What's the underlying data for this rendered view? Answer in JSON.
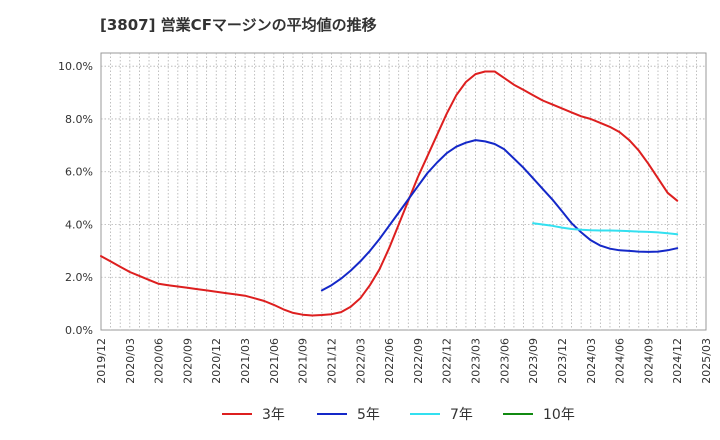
{
  "chart_data": {
    "type": "line",
    "title": "[3807]  営業CFマージンの平均値の推移",
    "xlabel": "",
    "ylabel": "",
    "ylim": [
      0,
      10.5
    ],
    "yticks": [
      "0.0%",
      "2.0%",
      "4.0%",
      "6.0%",
      "8.0%",
      "10.0%"
    ],
    "ytick_values": [
      0,
      2,
      4,
      6,
      8,
      10
    ],
    "xlim": [
      "2019/12",
      "2025/03"
    ],
    "xticks": [
      "2019/12",
      "2020/03",
      "2020/06",
      "2020/09",
      "2020/12",
      "2021/03",
      "2021/06",
      "2021/09",
      "2021/12",
      "2022/03",
      "2022/06",
      "2022/09",
      "2022/12",
      "2023/03",
      "2023/06",
      "2023/09",
      "2023/12",
      "2024/03",
      "2024/06",
      "2024/09",
      "2024/12",
      "2025/03"
    ],
    "grid": true,
    "legend_position": "bottom",
    "series": [
      {
        "name": "3年",
        "color": "#dd1f1f",
        "points": [
          [
            "2019/12",
            2.8
          ],
          [
            "2020/01",
            2.6
          ],
          [
            "2020/02",
            2.4
          ],
          [
            "2020/03",
            2.2
          ],
          [
            "2020/04",
            2.05
          ],
          [
            "2020/05",
            1.9
          ],
          [
            "2020/06",
            1.75
          ],
          [
            "2020/07",
            1.7
          ],
          [
            "2020/08",
            1.65
          ],
          [
            "2020/09",
            1.6
          ],
          [
            "2020/10",
            1.55
          ],
          [
            "2020/11",
            1.5
          ],
          [
            "2020/12",
            1.45
          ],
          [
            "2021/01",
            1.4
          ],
          [
            "2021/02",
            1.35
          ],
          [
            "2021/03",
            1.3
          ],
          [
            "2021/04",
            1.2
          ],
          [
            "2021/05",
            1.1
          ],
          [
            "2021/06",
            0.95
          ],
          [
            "2021/07",
            0.78
          ],
          [
            "2021/08",
            0.65
          ],
          [
            "2021/09",
            0.58
          ],
          [
            "2021/10",
            0.55
          ],
          [
            "2021/11",
            0.57
          ],
          [
            "2021/12",
            0.6
          ],
          [
            "2022/01",
            0.68
          ],
          [
            "2022/02",
            0.88
          ],
          [
            "2022/03",
            1.2
          ],
          [
            "2022/04",
            1.7
          ],
          [
            "2022/05",
            2.3
          ],
          [
            "2022/06",
            3.1
          ],
          [
            "2022/07",
            4.0
          ],
          [
            "2022/08",
            4.9
          ],
          [
            "2022/09",
            5.8
          ],
          [
            "2022/10",
            6.6
          ],
          [
            "2022/11",
            7.4
          ],
          [
            "2022/12",
            8.2
          ],
          [
            "2023/01",
            8.9
          ],
          [
            "2023/02",
            9.4
          ],
          [
            "2023/03",
            9.7
          ],
          [
            "2023/04",
            9.8
          ],
          [
            "2023/05",
            9.8
          ],
          [
            "2023/06",
            9.55
          ],
          [
            "2023/07",
            9.3
          ],
          [
            "2023/08",
            9.1
          ],
          [
            "2023/09",
            8.9
          ],
          [
            "2023/10",
            8.7
          ],
          [
            "2023/11",
            8.55
          ],
          [
            "2023/12",
            8.4
          ],
          [
            "2024/01",
            8.25
          ],
          [
            "2024/02",
            8.1
          ],
          [
            "2024/03",
            8.0
          ],
          [
            "2024/04",
            7.85
          ],
          [
            "2024/05",
            7.7
          ],
          [
            "2024/06",
            7.5
          ],
          [
            "2024/07",
            7.2
          ],
          [
            "2024/08",
            6.8
          ],
          [
            "2024/09",
            6.3
          ],
          [
            "2024/10",
            5.75
          ],
          [
            "2024/11",
            5.2
          ],
          [
            "2024/12",
            4.9
          ]
        ]
      },
      {
        "name": "5年",
        "color": "#1428c8",
        "points": [
          [
            "2021/11",
            1.5
          ],
          [
            "2021/12",
            1.7
          ],
          [
            "2022/01",
            1.95
          ],
          [
            "2022/02",
            2.25
          ],
          [
            "2022/03",
            2.6
          ],
          [
            "2022/04",
            3.0
          ],
          [
            "2022/05",
            3.45
          ],
          [
            "2022/06",
            3.95
          ],
          [
            "2022/07",
            4.45
          ],
          [
            "2022/08",
            4.95
          ],
          [
            "2022/09",
            5.45
          ],
          [
            "2022/10",
            5.95
          ],
          [
            "2022/11",
            6.35
          ],
          [
            "2022/12",
            6.7
          ],
          [
            "2023/01",
            6.95
          ],
          [
            "2023/02",
            7.1
          ],
          [
            "2023/03",
            7.2
          ],
          [
            "2023/04",
            7.15
          ],
          [
            "2023/05",
            7.05
          ],
          [
            "2023/06",
            6.85
          ],
          [
            "2023/07",
            6.5
          ],
          [
            "2023/08",
            6.15
          ],
          [
            "2023/09",
            5.75
          ],
          [
            "2023/10",
            5.35
          ],
          [
            "2023/11",
            4.95
          ],
          [
            "2023/12",
            4.5
          ],
          [
            "2024/01",
            4.05
          ],
          [
            "2024/02",
            3.7
          ],
          [
            "2024/03",
            3.4
          ],
          [
            "2024/04",
            3.2
          ],
          [
            "2024/05",
            3.08
          ],
          [
            "2024/06",
            3.02
          ],
          [
            "2024/07",
            3.0
          ],
          [
            "2024/08",
            2.97
          ],
          [
            "2024/09",
            2.96
          ],
          [
            "2024/10",
            2.97
          ],
          [
            "2024/11",
            3.02
          ],
          [
            "2024/12",
            3.1
          ]
        ]
      },
      {
        "name": "7年",
        "color": "#33e0f0",
        "points": [
          [
            "2023/09",
            4.05
          ],
          [
            "2023/10",
            4.0
          ],
          [
            "2023/11",
            3.95
          ],
          [
            "2023/12",
            3.88
          ],
          [
            "2024/01",
            3.83
          ],
          [
            "2024/02",
            3.8
          ],
          [
            "2024/03",
            3.78
          ],
          [
            "2024/04",
            3.77
          ],
          [
            "2024/05",
            3.77
          ],
          [
            "2024/06",
            3.76
          ],
          [
            "2024/07",
            3.75
          ],
          [
            "2024/08",
            3.73
          ],
          [
            "2024/09",
            3.72
          ],
          [
            "2024/10",
            3.7
          ],
          [
            "2024/11",
            3.67
          ],
          [
            "2024/12",
            3.63
          ]
        ]
      },
      {
        "name": "10年",
        "color": "#118a11",
        "points": []
      }
    ]
  }
}
